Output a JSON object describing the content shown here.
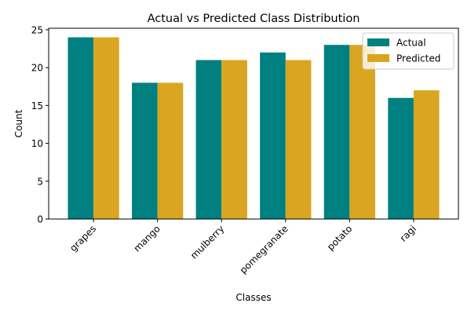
{
  "chart_data": {
    "type": "bar",
    "title": "Actual vs Predicted Class Distribution",
    "xlabel": "Classes",
    "ylabel": "Count",
    "categories": [
      "grapes",
      "mango",
      "mulberry",
      "pomegranate",
      "potato",
      "ragi"
    ],
    "series": [
      {
        "name": "Actual",
        "values": [
          24,
          18,
          21,
          22,
          23,
          16
        ],
        "color": "#008080"
      },
      {
        "name": "Predicted",
        "values": [
          24,
          18,
          21,
          21,
          23,
          17
        ],
        "color": "#DAA520"
      }
    ],
    "ylim": [
      0,
      25.2
    ],
    "yticks": [
      "0",
      "5",
      "10",
      "15",
      "20",
      "25"
    ],
    "xtick_rotation": 45,
    "grid": false,
    "legend_position": "top-right"
  }
}
